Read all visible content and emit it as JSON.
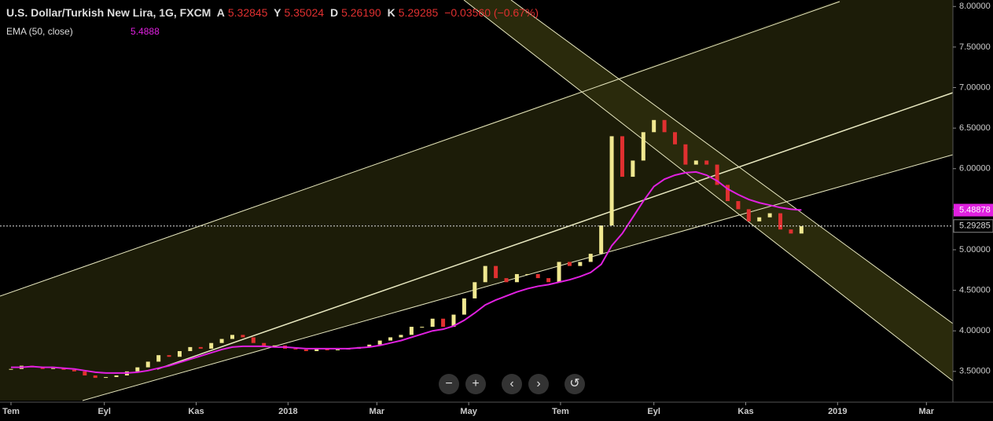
{
  "header": {
    "symbol": "U.S. Dollar/Turkish New Lira, 1G, FXCM",
    "open_label": "A",
    "open": "5.32845",
    "high_label": "Y",
    "high": "5.35024",
    "low_label": "D",
    "low": "5.26190",
    "close_label": "K",
    "close": "5.29285",
    "change": "−0.03560 (−0.67%)"
  },
  "indicator": {
    "name": "EMA (50, close)",
    "value": "5.4888"
  },
  "chart_data": {
    "type": "candlestick",
    "xlim": [
      -7.3,
      625.6
    ],
    "ylim": [
      3.14,
      8.08
    ],
    "xticks": [
      {
        "value": 0,
        "label": "Tem"
      },
      {
        "value": 62,
        "label": "Eyl"
      },
      {
        "value": 123,
        "label": "Kas"
      },
      {
        "value": 184,
        "label": "2018"
      },
      {
        "value": 243,
        "label": "Mar"
      },
      {
        "value": 304,
        "label": "May"
      },
      {
        "value": 365,
        "label": "Tem"
      },
      {
        "value": 427,
        "label": "Eyl"
      },
      {
        "value": 488,
        "label": "Kas"
      },
      {
        "value": 549,
        "label": "2019"
      },
      {
        "value": 608,
        "label": "Mar"
      }
    ],
    "yticks": [
      {
        "value": 3.5,
        "label": "3.50000"
      },
      {
        "value": 4,
        "label": "4.00000"
      },
      {
        "value": 4.5,
        "label": "4.50000"
      },
      {
        "value": 5,
        "label": "5.00000"
      },
      {
        "value": 5.5,
        "label": "5.50000"
      },
      {
        "value": 6,
        "label": "6.00000"
      },
      {
        "value": 6.5,
        "label": "6.50000"
      },
      {
        "value": 7,
        "label": "7.00000"
      },
      {
        "value": 7.5,
        "label": "7.50000"
      },
      {
        "value": 8,
        "label": "8.00000"
      }
    ],
    "x": [
      0,
      7,
      14,
      21,
      28,
      35,
      42,
      49,
      56,
      63,
      70,
      77,
      84,
      91,
      98,
      105,
      112,
      119,
      126,
      133,
      140,
      147,
      154,
      161,
      168,
      175,
      182,
      189,
      196,
      203,
      210,
      217,
      224,
      231,
      238,
      245,
      252,
      259,
      266,
      273,
      280,
      287,
      294,
      301,
      308,
      315,
      322,
      329,
      336,
      343,
      350,
      357,
      364,
      371,
      378,
      385,
      392,
      399,
      406,
      413,
      420,
      427,
      434,
      441,
      448,
      455,
      462,
      469,
      476,
      483,
      490,
      497,
      504,
      511,
      518,
      525
    ],
    "series": [
      {
        "name": "USD/TRY",
        "up_color": "#f0e890",
        "down_color": "#e03030",
        "values": [
          3.53,
          3.57,
          3.55,
          3.53,
          3.54,
          3.52,
          3.5,
          3.45,
          3.42,
          3.43,
          3.45,
          3.5,
          3.55,
          3.62,
          3.7,
          3.68,
          3.75,
          3.8,
          3.78,
          3.85,
          3.9,
          3.95,
          3.92,
          3.85,
          3.8,
          3.82,
          3.78,
          3.77,
          3.75,
          3.78,
          3.76,
          3.77,
          3.78,
          3.8,
          3.83,
          3.88,
          3.92,
          3.95,
          4.05,
          4.05,
          4.15,
          4.05,
          4.2,
          4.4,
          4.6,
          4.8,
          4.65,
          4.6,
          4.7,
          4.7,
          4.65,
          4.6,
          4.85,
          4.8,
          4.85,
          4.95,
          5.3,
          6.4,
          5.9,
          6.1,
          6.45,
          6.6,
          6.45,
          6.3,
          6.05,
          6.1,
          6.05,
          5.8,
          5.6,
          5.5,
          5.35,
          5.4,
          5.45,
          5.25,
          5.2,
          5.29
        ]
      },
      {
        "name": "EMA",
        "color": "#e020e0",
        "values": [
          3.55,
          3.55,
          3.56,
          3.55,
          3.55,
          3.54,
          3.53,
          3.51,
          3.49,
          3.48,
          3.48,
          3.48,
          3.49,
          3.51,
          3.54,
          3.57,
          3.61,
          3.65,
          3.69,
          3.73,
          3.77,
          3.8,
          3.81,
          3.81,
          3.81,
          3.8,
          3.8,
          3.79,
          3.78,
          3.78,
          3.78,
          3.78,
          3.78,
          3.79,
          3.8,
          3.82,
          3.85,
          3.88,
          3.92,
          3.96,
          4.0,
          4.02,
          4.06,
          4.13,
          4.22,
          4.32,
          4.38,
          4.43,
          4.48,
          4.52,
          4.55,
          4.57,
          4.6,
          4.63,
          4.67,
          4.72,
          4.82,
          5.05,
          5.2,
          5.4,
          5.6,
          5.78,
          5.87,
          5.92,
          5.95,
          5.96,
          5.92,
          5.85,
          5.75,
          5.68,
          5.62,
          5.58,
          5.55,
          5.52,
          5.5,
          5.49
        ]
      }
    ],
    "last_price": {
      "value": 5.29285,
      "label": "5.29285"
    },
    "ema_last": {
      "value": 5.48878,
      "label": "5.48878"
    }
  }
}
